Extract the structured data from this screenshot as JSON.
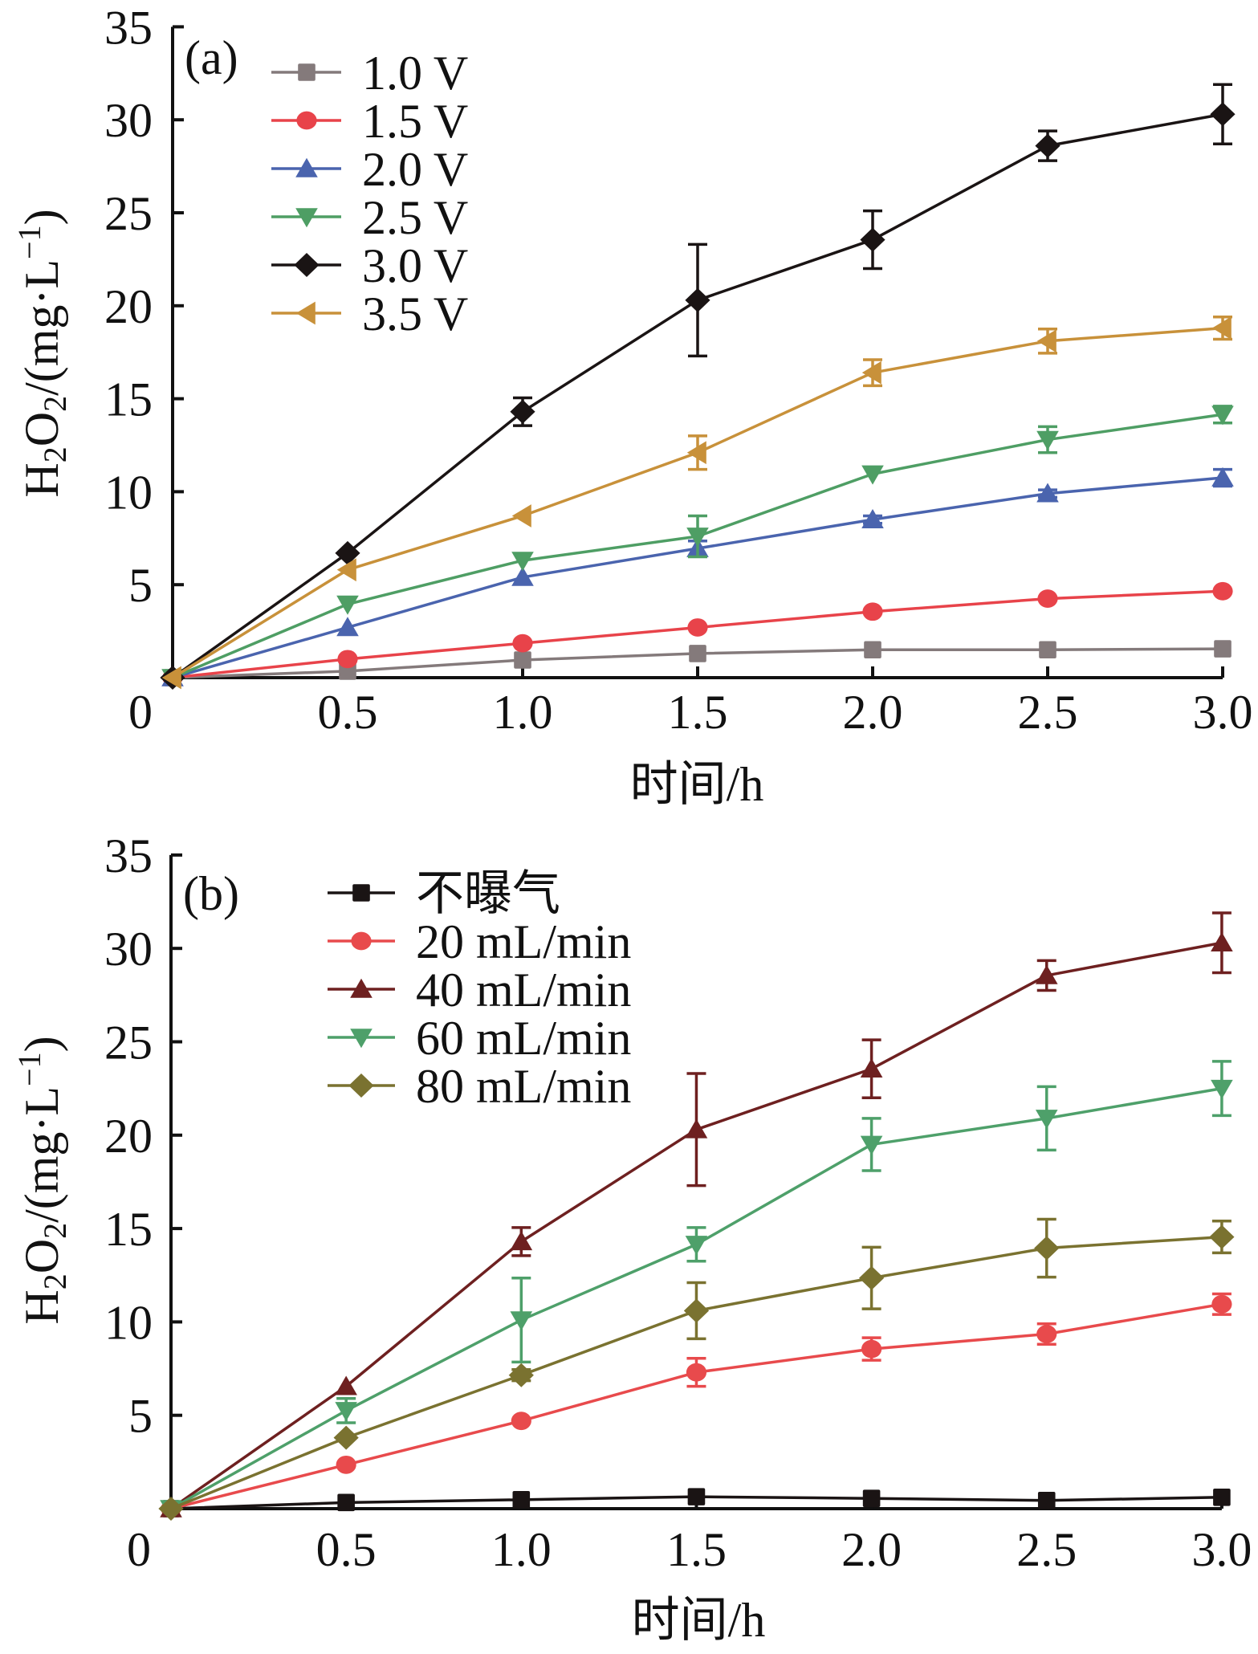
{
  "chart_data": [
    {
      "type": "line",
      "panel_label": "(a)",
      "title": "",
      "xlabel": "时间/h",
      "ylabel": "H2O2/(mg·L-1)",
      "ylabel_parts": {
        "main": "H",
        "sub1": "2",
        "mid": "O",
        "sub2": "2",
        "rest": "/(mg·L",
        "sup": "−1",
        "close": ")"
      },
      "xlim": [
        0,
        3.0
      ],
      "ylim": [
        0,
        35
      ],
      "x_ticks": [
        0.5,
        1.0,
        1.5,
        2.0,
        2.5,
        3.0
      ],
      "x_tick_labels": [
        "0.5",
        "1.0",
        "1.5",
        "2.0",
        "2.5",
        "3.0"
      ],
      "origin_label": "0",
      "y_ticks": [
        5,
        10,
        15,
        20,
        25,
        30,
        35
      ],
      "y_tick_labels": [
        "5",
        "10",
        "15",
        "20",
        "25",
        "30",
        "35"
      ],
      "grid": false,
      "legend_position": "top-left",
      "x": [
        0,
        0.5,
        1.0,
        1.5,
        2.0,
        2.5,
        3.0
      ],
      "series": [
        {
          "name": "1.0 V",
          "color": "#847a7b",
          "marker": "square",
          "values": [
            0,
            0.35,
            0.95,
            1.3,
            1.5,
            1.5,
            1.55
          ],
          "error": [
            0,
            0,
            0,
            0,
            0,
            0,
            0
          ]
        },
        {
          "name": "1.5 V",
          "color": "#e8434a",
          "marker": "circle",
          "values": [
            0,
            1.0,
            1.85,
            2.7,
            3.55,
            4.25,
            4.65
          ],
          "error": [
            0,
            0,
            0,
            0,
            0,
            0,
            0
          ]
        },
        {
          "name": "2.0 V",
          "color": "#4a64ae",
          "marker": "triangle-up",
          "values": [
            0,
            2.7,
            5.4,
            6.95,
            8.5,
            9.9,
            10.75
          ],
          "error": [
            0,
            0,
            0,
            0.4,
            0.2,
            0.2,
            0.45
          ]
        },
        {
          "name": "2.5 V",
          "color": "#4e9e64",
          "marker": "triangle-down",
          "values": [
            0,
            3.95,
            6.3,
            7.6,
            10.95,
            12.8,
            14.15
          ],
          "error": [
            0,
            0,
            0,
            1.1,
            0,
            0.7,
            0.45
          ]
        },
        {
          "name": "3.0 V",
          "color": "#1a1414",
          "marker": "diamond",
          "values": [
            0,
            6.7,
            14.3,
            20.3,
            23.55,
            28.6,
            30.3
          ],
          "error": [
            0,
            0,
            0.75,
            3.0,
            1.55,
            0.8,
            1.6
          ]
        },
        {
          "name": "3.5 V",
          "color": "#c8913a",
          "marker": "triangle-left",
          "values": [
            0,
            5.8,
            8.7,
            12.1,
            16.4,
            18.1,
            18.8
          ],
          "error": [
            0,
            0,
            0,
            0.9,
            0.7,
            0.65,
            0.6
          ]
        }
      ]
    },
    {
      "type": "line",
      "panel_label": "(b)",
      "title": "",
      "xlabel": "时间/h",
      "ylabel": "H2O2/(mg·L-1)",
      "ylabel_parts": {
        "main": "H",
        "sub1": "2",
        "mid": "O",
        "sub2": "2",
        "rest": "/(mg·L",
        "sup": "−1",
        "close": ")"
      },
      "xlim": [
        0,
        3.0
      ],
      "ylim": [
        0,
        35
      ],
      "x_ticks": [
        0.5,
        1.0,
        1.5,
        2.0,
        2.5,
        3.0
      ],
      "x_tick_labels": [
        "0.5",
        "1.0",
        "1.5",
        "2.0",
        "2.5",
        "3.0"
      ],
      "origin_label": "0",
      "y_ticks": [
        5,
        10,
        15,
        20,
        25,
        30,
        35
      ],
      "y_tick_labels": [
        "5",
        "10",
        "15",
        "20",
        "25",
        "30",
        "35"
      ],
      "grid": false,
      "legend_position": "top-left",
      "x": [
        0,
        0.5,
        1.0,
        1.5,
        2.0,
        2.5,
        3.0
      ],
      "series": [
        {
          "name": "不曝气",
          "color": "#1a1414",
          "marker": "square",
          "values": [
            0,
            0.33,
            0.48,
            0.64,
            0.55,
            0.44,
            0.61
          ],
          "error": [
            0,
            0,
            0,
            0,
            0,
            0,
            0
          ]
        },
        {
          "name": "20 mL/min",
          "color": "#e84a4c",
          "marker": "circle",
          "values": [
            0,
            2.35,
            4.7,
            7.3,
            8.55,
            9.35,
            10.95
          ],
          "error": [
            0,
            0,
            0,
            0.75,
            0.6,
            0.55,
            0.55
          ]
        },
        {
          "name": "40 mL/min",
          "color": "#6e2020",
          "marker": "triangle-up",
          "values": [
            0,
            6.55,
            14.3,
            20.3,
            23.55,
            28.55,
            30.3
          ],
          "error": [
            0,
            0,
            0.75,
            3.0,
            1.55,
            0.8,
            1.6
          ]
        },
        {
          "name": "60 mL/min",
          "color": "#4ea06a",
          "marker": "triangle-down",
          "values": [
            0,
            5.25,
            10.1,
            14.15,
            19.5,
            20.9,
            22.5
          ],
          "error": [
            0,
            0.65,
            2.25,
            0.9,
            1.4,
            1.7,
            1.45
          ]
        },
        {
          "name": "80 mL/min",
          "color": "#7a7230",
          "marker": "diamond",
          "values": [
            0,
            3.8,
            7.15,
            10.6,
            12.35,
            13.95,
            14.55
          ],
          "error": [
            0,
            0,
            0.3,
            1.5,
            1.65,
            1.55,
            0.85
          ]
        }
      ]
    }
  ]
}
